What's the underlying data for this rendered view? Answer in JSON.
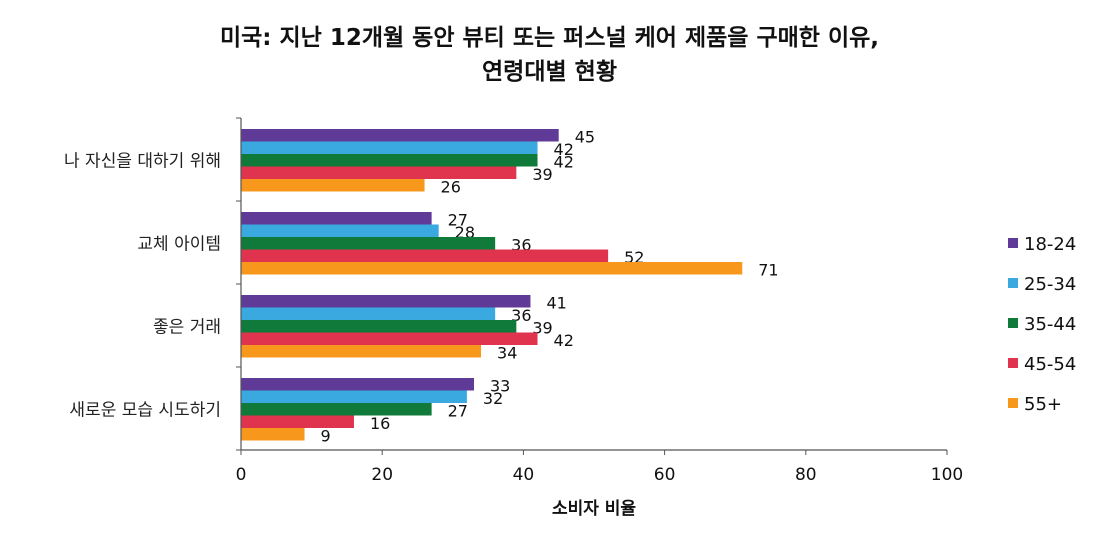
{
  "chart_data": {
    "type": "bar",
    "orientation": "horizontal",
    "title_lines": [
      "미국: 지난 12개월 동안 뷰티 또는 퍼스널 케어 제품을 구매한 이유,",
      "연령대별 현황"
    ],
    "categories": [
      "나 자신을 대하기 위해",
      "교체 아이템",
      "좋은 거래",
      "새로운 모습 시도하기"
    ],
    "series": [
      {
        "name": "18-24",
        "color": "#5f3a97",
        "values": [
          45,
          27,
          41,
          33
        ]
      },
      {
        "name": "25-34",
        "color": "#3aa9df",
        "values": [
          42,
          28,
          36,
          32
        ]
      },
      {
        "name": "35-44",
        "color": "#0f7a3a",
        "values": [
          42,
          36,
          39,
          27
        ]
      },
      {
        "name": "45-54",
        "color": "#e0334d",
        "values": [
          39,
          52,
          42,
          16
        ]
      },
      {
        "name": "55+",
        "color": "#f7981d",
        "values": [
          26,
          71,
          34,
          9
        ]
      }
    ],
    "xlabel": "소비자 비율",
    "xlim": [
      0,
      100
    ],
    "xticks": [
      0,
      20,
      40,
      60,
      80,
      100
    ],
    "grid": false,
    "legend_position": "right"
  }
}
